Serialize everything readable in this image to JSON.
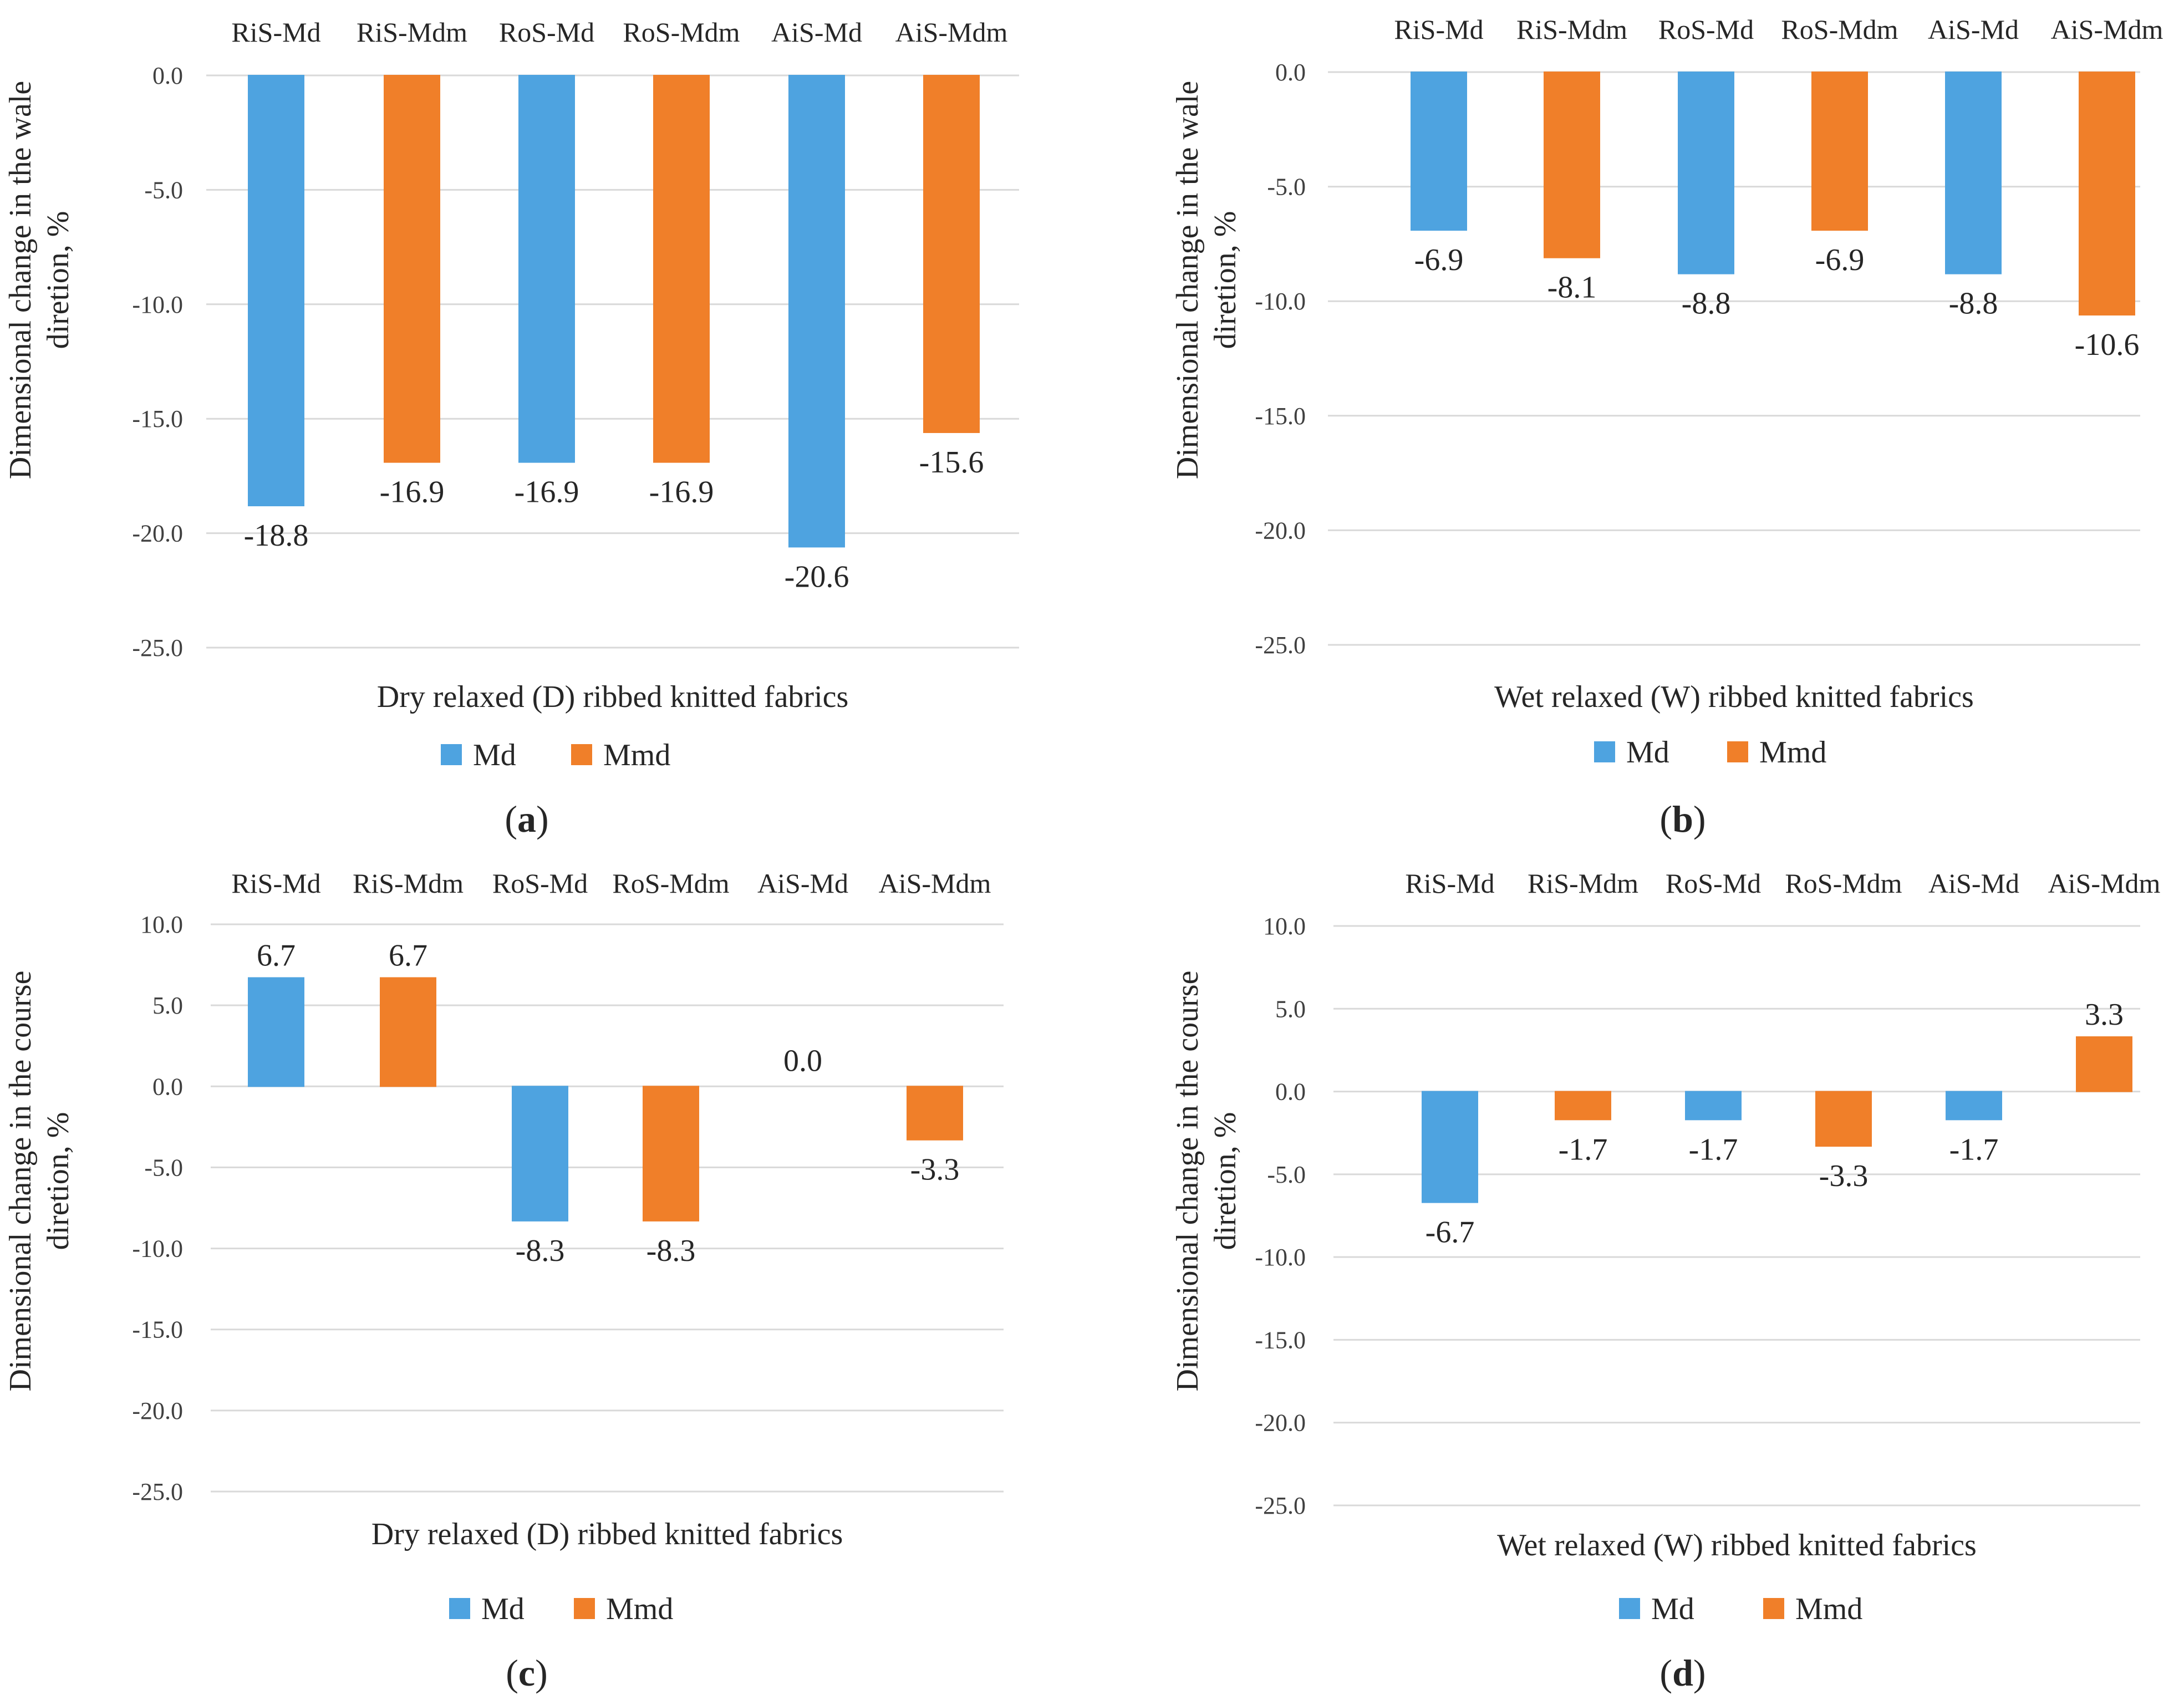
{
  "colors": {
    "md": "#4EA3E0",
    "mmd": "#F07F29",
    "grid": "#D9D9D9"
  },
  "legend": {
    "md": "Md",
    "mmd": "Mmd"
  },
  "chart_data": [
    {
      "type": "bar",
      "panel": "(a)",
      "panel_letter": "a",
      "categories": [
        "RiS-Md",
        "RiS-Mdm",
        "RoS-Md",
        "RoS-Mdm",
        "AiS-Md",
        "AiS-Mdm"
      ],
      "values": [
        -18.8,
        -16.9,
        -16.9,
        -16.9,
        -20.6,
        -15.6
      ],
      "value_labels": [
        "-18.8",
        "-16.9",
        "-16.9",
        "-16.9",
        "-20.6",
        "-15.6"
      ],
      "series_of_bar": [
        "Md",
        "Mmd",
        "Md",
        "Mmd",
        "Md",
        "Mmd"
      ],
      "xlabel": "Dry relaxed (D) ribbed knitted fabrics",
      "ylabel_line1": "Dimensional change in the wale",
      "ylabel_line2": "diretion, %",
      "yticks": [
        "0.0",
        "-5.0",
        "-10.0",
        "-15.0",
        "-20.0",
        "-25.0"
      ],
      "ylim": [
        -25,
        0
      ]
    },
    {
      "type": "bar",
      "panel": "(b)",
      "panel_letter": "b",
      "categories": [
        "RiS-Md",
        "RiS-Mdm",
        "RoS-Md",
        "RoS-Mdm",
        "AiS-Md",
        "AiS-Mdm"
      ],
      "values": [
        -6.9,
        -8.1,
        -8.8,
        -6.9,
        -8.8,
        -10.6
      ],
      "value_labels": [
        "-6.9",
        "-8.1",
        "-8.8",
        "-6.9",
        "-8.8",
        "-10.6"
      ],
      "series_of_bar": [
        "Md",
        "Mmd",
        "Md",
        "Mmd",
        "Md",
        "Mmd"
      ],
      "xlabel": "Wet relaxed (W) ribbed knitted fabrics",
      "ylabel_line1": "Dimensional change in the wale",
      "ylabel_line2": "diretion, %",
      "yticks": [
        "0.0",
        "-5.0",
        "-10.0",
        "-15.0",
        "-20.0",
        "-25.0"
      ],
      "ylim": [
        -25,
        0
      ]
    },
    {
      "type": "bar",
      "panel": "(c)",
      "panel_letter": "c",
      "categories": [
        "RiS-Md",
        "RiS-Mdm",
        "RoS-Md",
        "RoS-Mdm",
        "AiS-Md",
        "AiS-Mdm"
      ],
      "values": [
        6.7,
        6.7,
        -8.3,
        -8.3,
        0.0,
        -3.3
      ],
      "value_labels": [
        "6.7",
        "6.7",
        "-8.3",
        "-8.3",
        "0.0",
        "-3.3"
      ],
      "series_of_bar": [
        "Md",
        "Mmd",
        "Md",
        "Mmd",
        "Md",
        "Mmd"
      ],
      "xlabel": "Dry relaxed (D) ribbed knitted fabrics",
      "ylabel_line1": "Dimensional change in the course",
      "ylabel_line2": "diretion, %",
      "yticks": [
        "10.0",
        "5.0",
        "0.0",
        "-5.0",
        "-10.0",
        "-15.0",
        "-20.0",
        "-25.0"
      ],
      "ylim": [
        -25,
        10
      ]
    },
    {
      "type": "bar",
      "panel": "(d)",
      "panel_letter": "d",
      "categories": [
        "RiS-Md",
        "RiS-Mdm",
        "RoS-Md",
        "RoS-Mdm",
        "AiS-Md",
        "AiS-Mdm"
      ],
      "values": [
        -6.7,
        -1.7,
        -1.7,
        -3.3,
        -1.7,
        3.3
      ],
      "value_labels": [
        "-6.7",
        "-1.7",
        "-1.7",
        "-3.3",
        "-1.7",
        "3.3"
      ],
      "series_of_bar": [
        "Md",
        "Mmd",
        "Md",
        "Mmd",
        "Md",
        "Mmd"
      ],
      "xlabel": "Wet relaxed (W) ribbed knitted fabrics",
      "ylabel_line1": "Dimensional change in the course",
      "ylabel_line2": "diretion, %",
      "yticks": [
        "10.0",
        "5.0",
        "0.0",
        "-5.0",
        "-10.0",
        "-15.0",
        "-20.0",
        "-25.0"
      ],
      "ylim": [
        -25,
        10
      ]
    }
  ]
}
